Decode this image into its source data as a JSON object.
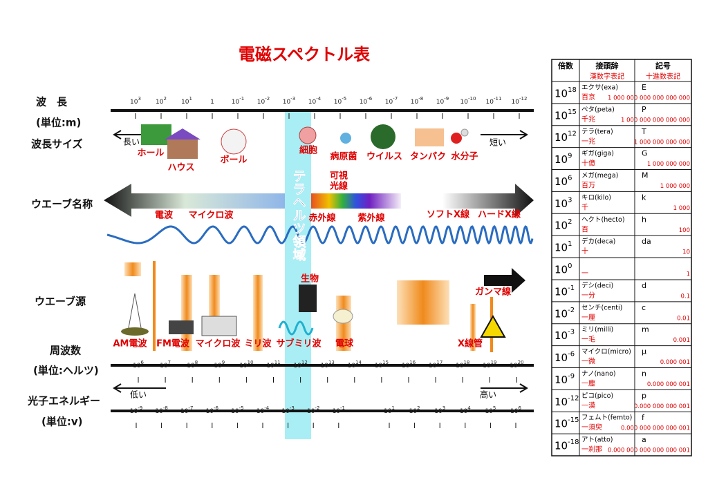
{
  "title": "電磁スペクトル表",
  "row_labels": {
    "wavelength": "波　長",
    "wavelength_unit": "(単位:m)",
    "size": "波長サイズ",
    "wave_name": "ウエーブ名称",
    "wave_source": "ウエーブ源",
    "frequency": "周波数",
    "frequency_unit": "(単位:ヘルツ)",
    "energy": "光子エネルギー",
    "energy_unit": "(単位:v)"
  },
  "wavelength_ticks": [
    {
      "base": "10",
      "exp": "3"
    },
    {
      "base": "10",
      "exp": "2"
    },
    {
      "base": "10",
      "exp": "1"
    },
    {
      "base": "1"
    },
    {
      "base": "10",
      "exp": "-1"
    },
    {
      "base": "10",
      "exp": "-2"
    },
    {
      "base": "10",
      "exp": "-3"
    },
    {
      "base": "10",
      "exp": "-4"
    },
    {
      "base": "10",
      "exp": "-5"
    },
    {
      "base": "10",
      "exp": "-6"
    },
    {
      "base": "10",
      "exp": "-7"
    },
    {
      "base": "10",
      "exp": "-8"
    },
    {
      "base": "10",
      "exp": "-9"
    },
    {
      "base": "10",
      "exp": "-10"
    },
    {
      "base": "10",
      "exp": "-11"
    },
    {
      "base": "10",
      "exp": "-12"
    }
  ],
  "size_arrows": {
    "long": "長い",
    "short": "短い"
  },
  "size_labels": [
    "ホール",
    "ハウス",
    "ボール",
    "細胞",
    "病原菌",
    "ウイルス",
    "タンパク",
    "水分子"
  ],
  "wave_names": {
    "radio": "電波",
    "microwave": "マイクロ波",
    "infrared": "赤外線",
    "visible": [
      "可視",
      "光線"
    ],
    "ultraviolet": "紫外線",
    "soft_xray": "ソフトX線",
    "hard_xray": "ハードX線"
  },
  "terahertz": "テラヘルツ領域",
  "sources": [
    "AM電波",
    "FM電波",
    "マイクロ波",
    "ミリ波",
    "サブミリ波",
    "生物",
    "電球",
    "X線管",
    "ガンマ線"
  ],
  "frequency_ticks": [
    {
      "base": "10",
      "exp": "6"
    },
    {
      "base": "10",
      "exp": "7"
    },
    {
      "base": "10",
      "exp": "8"
    },
    {
      "base": "10",
      "exp": "9"
    },
    {
      "base": "10",
      "exp": "10"
    },
    {
      "base": "10",
      "exp": "11"
    },
    {
      "base": "10",
      "exp": "12"
    },
    {
      "base": "10",
      "exp": "13"
    },
    {
      "base": "10",
      "exp": "14"
    },
    {
      "base": "10",
      "exp": "15"
    },
    {
      "base": "10",
      "exp": "16"
    },
    {
      "base": "10",
      "exp": "17"
    },
    {
      "base": "10",
      "exp": "18"
    },
    {
      "base": "10",
      "exp": "19"
    },
    {
      "base": "10",
      "exp": "20"
    }
  ],
  "energy_arrows": {
    "low": "低い",
    "high": "高い"
  },
  "energy_ticks": [
    {
      "base": "10",
      "exp": "-9"
    },
    {
      "base": "10",
      "exp": "-8"
    },
    {
      "base": "10",
      "exp": "-7"
    },
    {
      "base": "10",
      "exp": "-6"
    },
    {
      "base": "10",
      "exp": "-5"
    },
    {
      "base": "10",
      "exp": "-4"
    },
    {
      "base": "10",
      "exp": "-3"
    },
    {
      "base": "10",
      "exp": "-2"
    },
    {
      "base": "10",
      "exp": "-1"
    },
    {
      "base": "10",
      "exp": "1"
    },
    {
      "base": "10",
      "exp": "2"
    },
    {
      "base": "10",
      "exp": "3"
    },
    {
      "base": "10",
      "exp": "4"
    },
    {
      "base": "10",
      "exp": "5"
    },
    {
      "base": "10",
      "exp": "6"
    }
  ],
  "prefix_table": {
    "headers": [
      "倍数",
      "接頭辞",
      "記号"
    ],
    "subheaders": [
      "漢数字表記",
      "十進数表記"
    ],
    "rows": [
      {
        "exp": "18",
        "prefix": "エクサ(exa)",
        "kanji": "百京",
        "symbol": "E",
        "decimal": "1 000 000 000 000 000 000"
      },
      {
        "exp": "15",
        "prefix": "ペタ(peta)",
        "kanji": "千兆",
        "symbol": "P",
        "decimal": "1 000 000 000 000 000"
      },
      {
        "exp": "12",
        "prefix": "テラ(tera)",
        "kanji": "一兆",
        "symbol": "T",
        "decimal": "1 000 000 000 000"
      },
      {
        "exp": "9",
        "prefix": "ギガ(giga)",
        "kanji": "十億",
        "symbol": "G",
        "decimal": "1 000 000 000"
      },
      {
        "exp": "6",
        "prefix": "メガ(mega)",
        "kanji": "百万",
        "symbol": "M",
        "decimal": "1 000 000"
      },
      {
        "exp": "3",
        "prefix": "キロ(kilo)",
        "kanji": "千",
        "symbol": "k",
        "decimal": "1 000"
      },
      {
        "exp": "2",
        "prefix": "ヘクト(hecto)",
        "kanji": "百",
        "symbol": "h",
        "decimal": "100"
      },
      {
        "exp": "1",
        "prefix": "デカ(deca)",
        "kanji": "十",
        "symbol": "da",
        "decimal": "10"
      },
      {
        "exp": "0",
        "kanji": "一",
        "decimal": "1"
      },
      {
        "exp": "-1",
        "prefix": "デシ(deci)",
        "kanji": "一分",
        "symbol": "d",
        "decimal": "0.1"
      },
      {
        "exp": "-2",
        "prefix": "センチ(centi)",
        "kanji": "一厘",
        "symbol": "c",
        "decimal": "0.01"
      },
      {
        "exp": "-3",
        "prefix": "ミリ(milli)",
        "kanji": "一毛",
        "symbol": "m",
        "decimal": "0.001"
      },
      {
        "exp": "-6",
        "prefix": "マイクロ(micro)",
        "kanji": "一微",
        "symbol": "μ",
        "decimal": "0.000 001"
      },
      {
        "exp": "-9",
        "prefix": "ナノ(nano)",
        "kanji": "一塵",
        "symbol": "n",
        "decimal": "0.000 000 001"
      },
      {
        "exp": "-12",
        "prefix": "ピコ(pico)",
        "kanji": "一漠",
        "symbol": "p",
        "decimal": "0.000 000 000 001"
      },
      {
        "exp": "-15",
        "prefix": "フェムト(femto)",
        "kanji": "一須臾",
        "symbol": "f",
        "decimal": "0.000 000 000 000 001"
      },
      {
        "exp": "-18",
        "prefix": "アト(atto)",
        "kanji": "一刹那",
        "symbol": "a",
        "decimal": "0.000 000 000 000 000 001"
      }
    ]
  }
}
